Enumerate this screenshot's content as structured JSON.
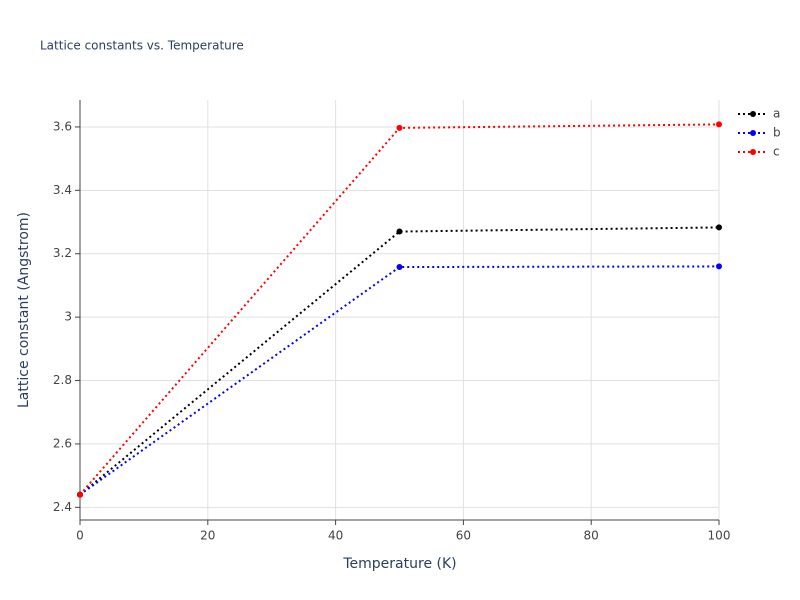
{
  "chart_data": {
    "type": "line",
    "title": "Lattice constants vs. Temperature",
    "x_label": "Temperature (K)",
    "y_label": "Lattice constant (Angstrom)",
    "x": [
      0,
      50,
      100
    ],
    "series": [
      {
        "name": "a",
        "color": "#000000",
        "values": [
          2.44,
          3.27,
          3.283
        ]
      },
      {
        "name": "b",
        "color": "#0000ff",
        "values": [
          2.44,
          3.158,
          3.16
        ]
      },
      {
        "name": "c",
        "color": "#ff0000",
        "values": [
          2.44,
          3.597,
          3.608
        ]
      }
    ],
    "xlim": [
      0,
      100
    ],
    "xticks": [
      0,
      20,
      40,
      60,
      80,
      100
    ],
    "ylim": [
      2.36,
      3.685
    ],
    "yticks": [
      2.4,
      2.6,
      2.8,
      3,
      3.2,
      3.4,
      3.6
    ],
    "grid": true,
    "legend": "top-right"
  }
}
